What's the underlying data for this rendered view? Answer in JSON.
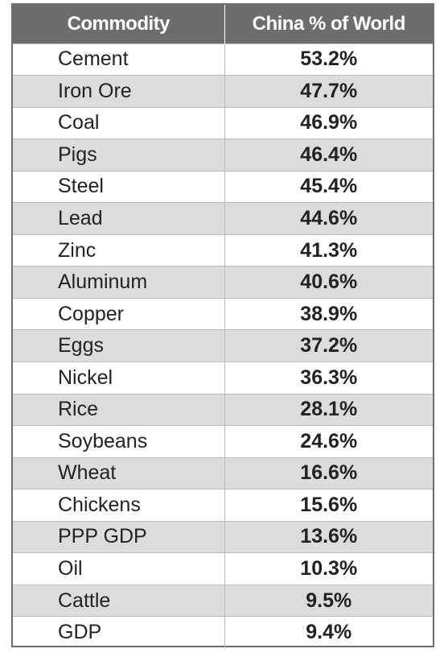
{
  "chart_data": {
    "type": "table",
    "columns": [
      "Commodity",
      "China % of World"
    ],
    "rows": [
      {
        "commodity": "Cement",
        "share": "53.2%"
      },
      {
        "commodity": "Iron Ore",
        "share": "47.7%"
      },
      {
        "commodity": "Coal",
        "share": "46.9%"
      },
      {
        "commodity": "Pigs",
        "share": "46.4%"
      },
      {
        "commodity": "Steel",
        "share": "45.4%"
      },
      {
        "commodity": "Lead",
        "share": "44.6%"
      },
      {
        "commodity": "Zinc",
        "share": "41.3%"
      },
      {
        "commodity": "Aluminum",
        "share": "40.6%"
      },
      {
        "commodity": "Copper",
        "share": "38.9%"
      },
      {
        "commodity": "Eggs",
        "share": "37.2%"
      },
      {
        "commodity": "Nickel",
        "share": "36.3%"
      },
      {
        "commodity": "Rice",
        "share": "28.1%"
      },
      {
        "commodity": "Soybeans",
        "share": "24.6%"
      },
      {
        "commodity": "Wheat",
        "share": "16.6%"
      },
      {
        "commodity": "Chickens",
        "share": "15.6%"
      },
      {
        "commodity": "PPP GDP",
        "share": "13.6%"
      },
      {
        "commodity": "Oil",
        "share": "10.3%"
      },
      {
        "commodity": "Cattle",
        "share": "9.5%"
      },
      {
        "commodity": "GDP",
        "share": "9.4%"
      }
    ]
  },
  "colors": {
    "header_bg": "#6d6d6d",
    "header_text": "#ffffff",
    "stripe": "#dcdcdc",
    "border": "#6e6e6e"
  }
}
